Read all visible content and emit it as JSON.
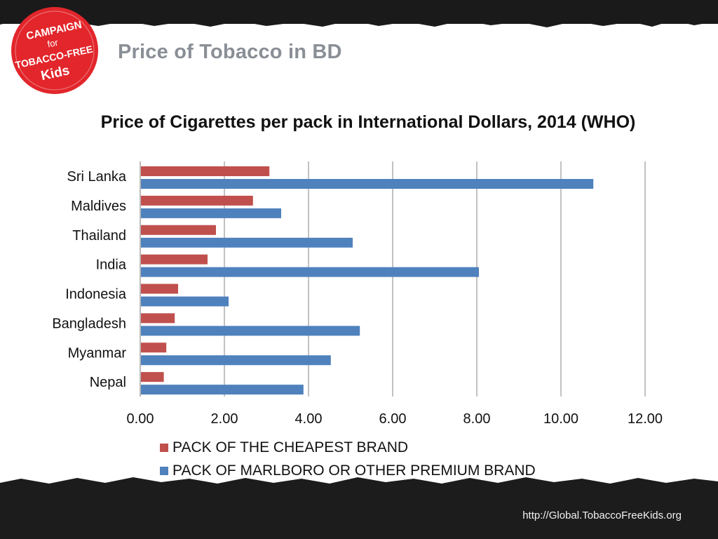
{
  "slide": {
    "title": "Price of Tobacco in BD",
    "footer_url": "http://Global.TobaccoFreeKids.org",
    "logo_text": "CAMPAIGN for TOBACCO-FREE Kids"
  },
  "colors": {
    "cheapest": "#c0504d",
    "premium": "#4f81bd",
    "title_gray": "#8a8f96"
  },
  "chart_data": {
    "type": "bar",
    "orientation": "horizontal",
    "title": "Price of Cigarettes per pack  in International Dollars, 2014 (WHO)",
    "categories": [
      "Sri Lanka",
      "Maldives",
      "Thailand",
      "India",
      "Indonesia",
      "Bangladesh",
      "Myanmar",
      "Nepal"
    ],
    "series": [
      {
        "name": "PACK OF THE CHEAPEST BRAND",
        "values": [
          3.07,
          2.68,
          1.8,
          1.6,
          0.9,
          0.82,
          0.62,
          0.56
        ]
      },
      {
        "name": "PACK OF MARLBORO OR OTHER PREMIUM BRAND",
        "values": [
          10.77,
          3.35,
          5.05,
          8.05,
          2.1,
          5.22,
          4.53,
          3.88
        ]
      }
    ],
    "xlim": [
      0,
      12
    ],
    "xticks": [
      "0.00",
      "2.00",
      "4.00",
      "6.00",
      "8.00",
      "10.00",
      "12.00"
    ],
    "grid": "vertical",
    "legend": "bottom"
  }
}
